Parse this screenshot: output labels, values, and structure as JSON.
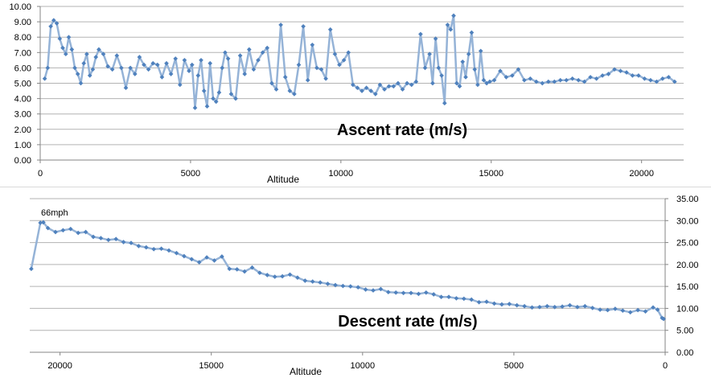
{
  "chart_data": [
    {
      "type": "line",
      "title": "Ascent rate (m/s)",
      "xlabel": "Altitude",
      "ylabel": "",
      "xlim": [
        0,
        21400
      ],
      "ylim": [
        0,
        10
      ],
      "x_ticks": [
        "0",
        "5000",
        "10000",
        "15000",
        "20000"
      ],
      "y_ticks": [
        "0.00",
        "1.00",
        "2.00",
        "3.00",
        "4.00",
        "5.00",
        "6.00",
        "7.00",
        "8.00",
        "9.00",
        "10.00"
      ],
      "grid": true,
      "series": [
        {
          "name": "Ascent rate",
          "x": [
            150,
            250,
            350,
            450,
            550,
            650,
            750,
            850,
            950,
            1050,
            1150,
            1250,
            1350,
            1450,
            1550,
            1650,
            1750,
            1850,
            1950,
            2100,
            2250,
            2400,
            2550,
            2700,
            2850,
            3000,
            3150,
            3300,
            3450,
            3600,
            3750,
            3900,
            4050,
            4200,
            4350,
            4500,
            4650,
            4800,
            4950,
            5050,
            5150,
            5250,
            5350,
            5450,
            5550,
            5650,
            5750,
            5850,
            5950,
            6050,
            6150,
            6250,
            6350,
            6500,
            6650,
            6800,
            6950,
            7100,
            7250,
            7400,
            7550,
            7700,
            7850,
            8000,
            8150,
            8300,
            8450,
            8600,
            8750,
            8900,
            9050,
            9200,
            9350,
            9500,
            9650,
            9800,
            9950,
            10100,
            10250,
            10400,
            10550,
            10700,
            10850,
            11000,
            11150,
            11300,
            11450,
            11600,
            11750,
            11900,
            12050,
            12200,
            12350,
            12500,
            12650,
            12800,
            12950,
            13050,
            13150,
            13250,
            13350,
            13450,
            13550,
            13650,
            13750,
            13850,
            13950,
            14050,
            14150,
            14250,
            14350,
            14450,
            14550,
            14650,
            14750,
            14850,
            14950,
            15100,
            15300,
            15500,
            15700,
            15900,
            16100,
            16300,
            16500,
            16700,
            16900,
            17100,
            17300,
            17500,
            17700,
            17900,
            18100,
            18300,
            18500,
            18700,
            18900,
            19100,
            19300,
            19500,
            19700,
            19900,
            20100,
            20300,
            20500,
            20700,
            20900,
            21100
          ],
          "values": [
            5.3,
            6.0,
            8.7,
            9.1,
            8.9,
            7.9,
            7.3,
            6.9,
            8.0,
            7.2,
            6.0,
            5.6,
            5.0,
            6.3,
            6.9,
            5.5,
            5.9,
            6.7,
            7.2,
            6.9,
            6.1,
            5.9,
            6.8,
            6.0,
            4.7,
            6.0,
            5.6,
            6.7,
            6.2,
            5.9,
            6.3,
            6.2,
            5.4,
            6.3,
            5.6,
            6.6,
            4.9,
            6.5,
            5.8,
            6.2,
            3.4,
            5.5,
            6.5,
            4.5,
            3.5,
            6.3,
            4.0,
            3.8,
            4.4,
            6.0,
            7.0,
            6.6,
            4.3,
            4.0,
            6.8,
            5.6,
            7.2,
            5.9,
            6.5,
            7.0,
            7.3,
            5.0,
            4.6,
            8.8,
            5.4,
            4.5,
            4.3,
            6.2,
            8.7,
            5.2,
            7.5,
            6.0,
            5.9,
            5.3,
            8.5,
            6.9,
            6.2,
            6.5,
            7.0,
            4.9,
            4.7,
            4.5,
            4.7,
            4.5,
            4.3,
            4.9,
            4.6,
            4.8,
            4.8,
            5.0,
            4.6,
            5.0,
            4.9,
            5.1,
            8.2,
            6.0,
            6.9,
            5.0,
            7.9,
            6.0,
            5.5,
            3.7,
            8.8,
            8.5,
            9.4,
            5.0,
            4.8,
            6.4,
            5.4,
            6.9,
            8.3,
            5.9,
            4.9,
            7.1,
            5.2,
            5.0,
            5.1,
            5.2,
            5.8,
            5.4,
            5.5,
            5.9,
            5.2,
            5.3,
            5.1,
            5.0,
            5.1,
            5.1,
            5.2,
            5.2,
            5.3,
            5.2,
            5.1,
            5.4,
            5.3,
            5.5,
            5.6,
            5.9,
            5.8,
            5.7,
            5.5,
            5.5,
            5.3,
            5.2,
            5.1,
            5.3,
            5.4,
            5.1
          ]
        }
      ]
    },
    {
      "type": "line",
      "title": "Descent rate (m/s)",
      "xlabel": "Altitude",
      "ylabel": "",
      "xlim": [
        21000,
        0
      ],
      "ylim": [
        0,
        35
      ],
      "x_ticks": [
        "20000",
        "15000",
        "10000",
        "5000",
        "0"
      ],
      "y_ticks": [
        "0.00",
        "5.00",
        "10.00",
        "15.00",
        "20.00",
        "25.00",
        "30.00",
        "35.00"
      ],
      "grid": true,
      "annotation": "66mph",
      "series": [
        {
          "name": "Descent rate",
          "x": [
            20950,
            20650,
            20550,
            20400,
            20150,
            19900,
            19650,
            19400,
            19150,
            18900,
            18650,
            18400,
            18150,
            17900,
            17650,
            17400,
            17150,
            16900,
            16650,
            16400,
            16150,
            15900,
            15650,
            15400,
            15150,
            14900,
            14650,
            14400,
            14150,
            13900,
            13650,
            13400,
            13150,
            12900,
            12650,
            12400,
            12150,
            11900,
            11650,
            11400,
            11150,
            10900,
            10650,
            10400,
            10150,
            9900,
            9650,
            9400,
            9150,
            8900,
            8650,
            8400,
            8150,
            7900,
            7650,
            7400,
            7150,
            6900,
            6650,
            6400,
            6150,
            5900,
            5650,
            5400,
            5150,
            4900,
            4650,
            4400,
            4150,
            3900,
            3650,
            3400,
            3150,
            2900,
            2650,
            2400,
            2150,
            1900,
            1650,
            1400,
            1150,
            900,
            650,
            400,
            250,
            100,
            50
          ],
          "values": [
            19.0,
            29.5,
            29.6,
            28.3,
            27.4,
            27.8,
            28.1,
            27.2,
            27.4,
            26.3,
            26.0,
            25.6,
            25.8,
            25.1,
            24.9,
            24.2,
            23.9,
            23.5,
            23.6,
            23.2,
            22.6,
            21.9,
            21.2,
            20.5,
            21.6,
            20.9,
            21.8,
            19.0,
            18.9,
            18.4,
            19.3,
            18.1,
            17.6,
            17.2,
            17.3,
            17.7,
            17.0,
            16.3,
            16.1,
            15.9,
            15.6,
            15.3,
            15.1,
            15.0,
            14.8,
            14.3,
            14.1,
            14.4,
            13.7,
            13.6,
            13.5,
            13.5,
            13.3,
            13.6,
            13.2,
            12.6,
            12.6,
            12.3,
            12.2,
            12.0,
            11.4,
            11.5,
            11.1,
            10.9,
            11.0,
            10.7,
            10.5,
            10.2,
            10.3,
            10.5,
            10.3,
            10.4,
            10.7,
            10.3,
            10.5,
            10.1,
            9.7,
            9.6,
            9.9,
            9.5,
            9.1,
            9.6,
            9.3,
            10.2,
            9.7,
            7.8,
            7.6
          ]
        }
      ]
    }
  ]
}
